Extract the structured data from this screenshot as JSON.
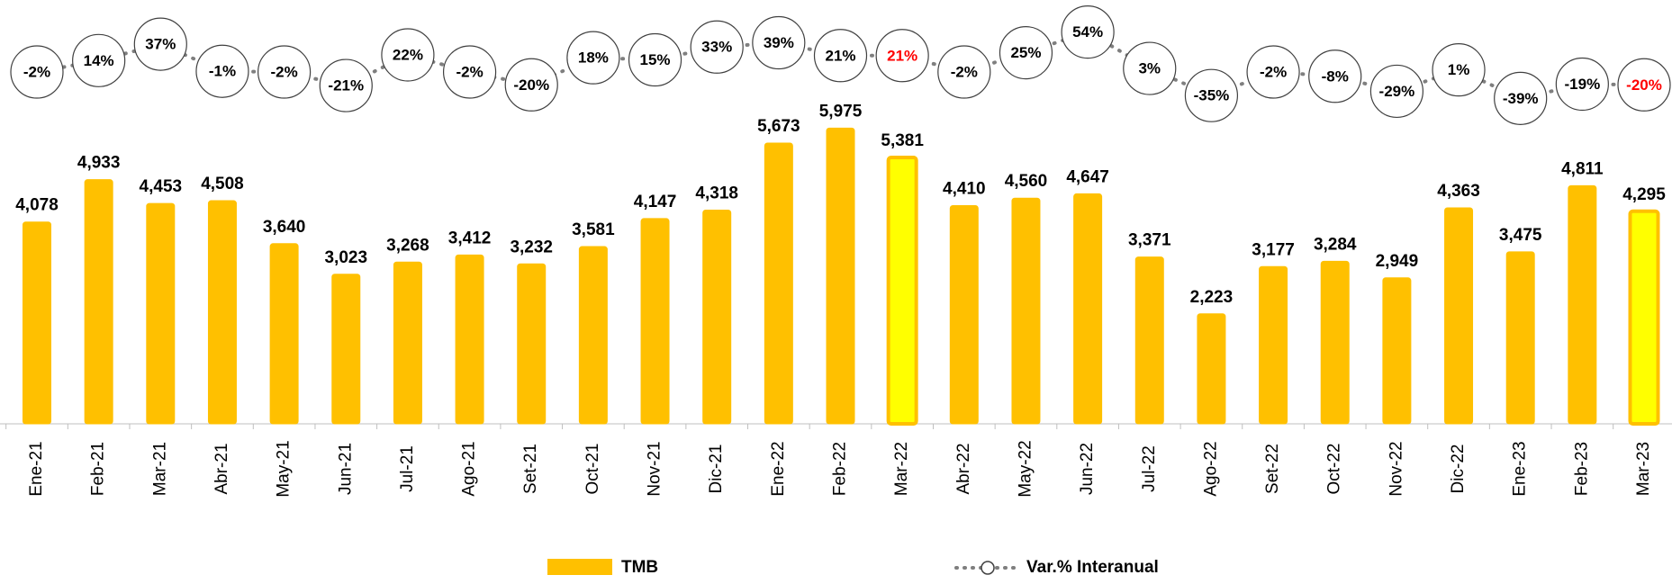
{
  "chart_data": {
    "type": "bar",
    "categories": [
      "Ene-21",
      "Feb-21",
      "Mar-21",
      "Abr-21",
      "May-21",
      "Jun-21",
      "Jul-21",
      "Ago-21",
      "Set-21",
      "Oct-21",
      "Nov-21",
      "Dic-21",
      "Ene-22",
      "Feb-22",
      "Mar-22",
      "Abr-22",
      "May-22",
      "Jun-22",
      "Jul-22",
      "Ago-22",
      "Set-22",
      "Oct-22",
      "Nov-22",
      "Dic-22",
      "Ene-23",
      "Feb-23",
      "Mar-23"
    ],
    "ylim": [
      0,
      6000
    ],
    "y2lim": [
      -60,
      80
    ],
    "series": [
      {
        "name": "TMB",
        "type": "bar",
        "color": "#ffc000",
        "fills": [
          "#ffc000",
          "#ffc000",
          "#ffc000",
          "#ffc000",
          "#ffc000",
          "#ffc000",
          "#ffc000",
          "#ffc000",
          "#ffc000",
          "#ffc000",
          "#ffc000",
          "#ffc000",
          "#ffc000",
          "#ffc000",
          "#ffff00",
          "#ffc000",
          "#ffc000",
          "#ffc000",
          "#ffc000",
          "#ffc000",
          "#ffc000",
          "#ffc000",
          "#ffc000",
          "#ffc000",
          "#ffc000",
          "#ffc000",
          "#ffff00"
        ],
        "values": [
          4078,
          4933,
          4453,
          4508,
          3640,
          3023,
          3268,
          3412,
          3232,
          3581,
          4147,
          4318,
          5673,
          5975,
          5381,
          4410,
          4560,
          4647,
          3371,
          2223,
          3177,
          3284,
          2949,
          4363,
          3475,
          4811,
          4295
        ],
        "value_labels": [
          "4,078",
          "4,933",
          "4,453",
          "4,508",
          "3,640",
          "3,023",
          "3,268",
          "3,412",
          "3,232",
          "3,581",
          "4,147",
          "4,318",
          "5,673",
          "5,975",
          "5,381",
          "4,410",
          "4,560",
          "4,647",
          "3,371",
          "2,223",
          "3,177",
          "3,284",
          "2,949",
          "4,363",
          "3,475",
          "4,811",
          "4,295"
        ]
      },
      {
        "name": "Var.% Interanual",
        "type": "line",
        "axis": "y2",
        "color": "#7f7f7f",
        "label_colors": [
          "#000",
          "#000",
          "#000",
          "#000",
          "#000",
          "#000",
          "#000",
          "#000",
          "#000",
          "#000",
          "#000",
          "#000",
          "#000",
          "#000",
          "#ff0000",
          "#000",
          "#000",
          "#000",
          "#000",
          "#000",
          "#000",
          "#000",
          "#000",
          "#000",
          "#000",
          "#000",
          "#ff0000"
        ],
        "values": [
          -2,
          14,
          37,
          -1,
          -2,
          -21,
          22,
          -2,
          -20,
          18,
          15,
          33,
          39,
          21,
          21,
          -2,
          25,
          54,
          3,
          -35,
          -2,
          -8,
          -29,
          1,
          -39,
          -19,
          -20
        ],
        "value_labels": [
          "-2%",
          "14%",
          "37%",
          "-1%",
          "-2%",
          "-21%",
          "22%",
          "-2%",
          "-20%",
          "18%",
          "15%",
          "33%",
          "39%",
          "21%",
          "21%",
          "-2%",
          "25%",
          "54%",
          "3%",
          "-35%",
          "-2%",
          "-8%",
          "-29%",
          "1%",
          "-39%",
          "-19%",
          "-20%"
        ]
      }
    ]
  }
}
